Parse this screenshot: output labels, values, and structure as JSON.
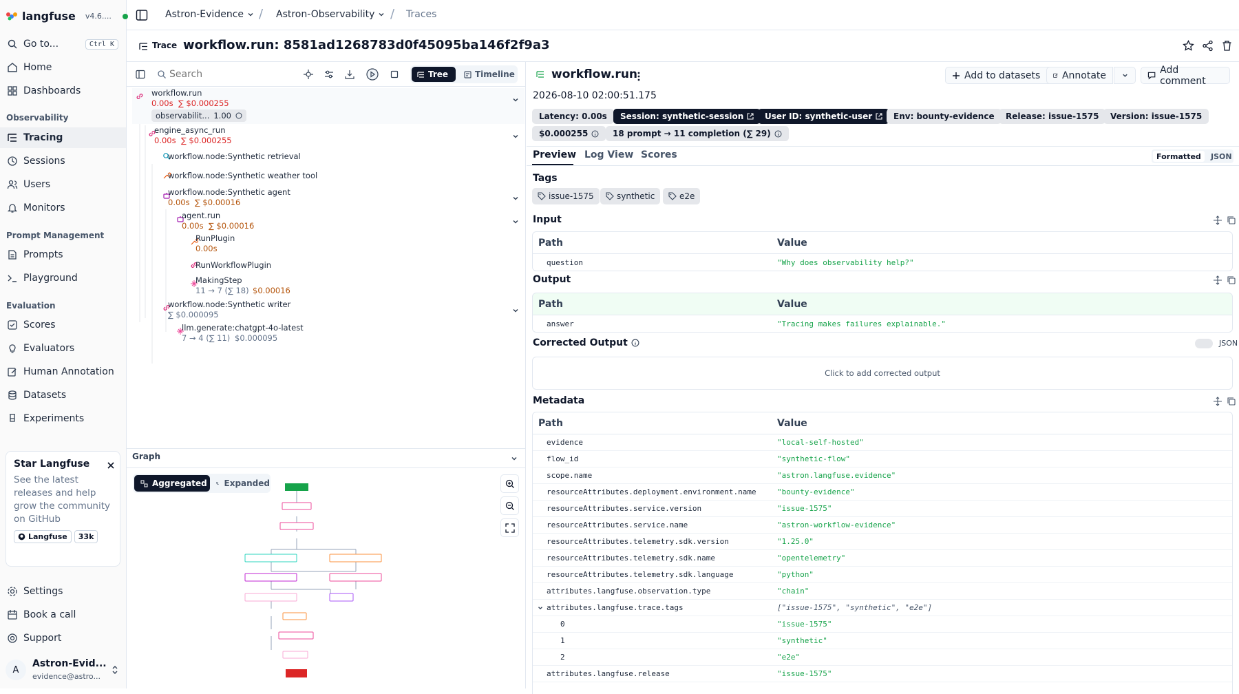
{
  "app": {
    "name": "langfuse",
    "version": "v4.6...."
  },
  "sidebar": {
    "goto": {
      "label": "Go to...",
      "shortcut": "Ctrl K"
    },
    "home": "Home",
    "dashboards": "Dashboards",
    "sections": {
      "observability": "Observability",
      "prompt_management": "Prompt Management",
      "evaluation": "Evaluation"
    },
    "observability_items": [
      "Tracing",
      "Sessions",
      "Users",
      "Monitors"
    ],
    "prompt_items": [
      "Prompts",
      "Playground"
    ],
    "evaluation_items": [
      "Scores",
      "Evaluators",
      "Human Annotation",
      "Datasets",
      "Experiments"
    ],
    "star_card": {
      "title": "Star Langfuse",
      "desc": "See the latest releases and help grow the community on GitHub",
      "gh_label": "Langfuse",
      "gh_count": "33k"
    },
    "bottom_items": [
      "Settings",
      "Book a call",
      "Support"
    ],
    "user": {
      "initial": "A",
      "name": "Astron-Evid...",
      "email": "evidence@astro..."
    }
  },
  "breadcrumb": {
    "org": "Astron-Evidence",
    "project": "Astron-Observability",
    "page": "Traces"
  },
  "trace_header": {
    "badge": "Trace",
    "title": "workflow.run: 8581ad1268783d0f45095ba146f2f9a3"
  },
  "tree_panel": {
    "search_placeholder": "Search",
    "view_tree": "Tree",
    "view_timeline": "Timeline",
    "rows": {
      "r1": {
        "name": "workflow.run",
        "latency": "0.00s",
        "cost": "∑ $0.000255",
        "score_label": "observabilit...",
        "score_value": "1.00"
      },
      "r2": {
        "name": "engine_async_run",
        "latency": "0.00s",
        "cost": "∑ $0.000255"
      },
      "r3": {
        "name": "workflow.node:Synthetic retrieval"
      },
      "r4": {
        "name": "workflow.node:Synthetic weather tool"
      },
      "r5": {
        "name": "workflow.node:Synthetic agent",
        "latency": "0.00s",
        "cost": "∑ $0.00016"
      },
      "r6": {
        "name": "agent.run",
        "latency": "0.00s",
        "cost": "∑ $0.00016"
      },
      "r7": {
        "name": "RunPlugin",
        "latency": "0.00s"
      },
      "r8": {
        "name": "RunWorkflowPlugin"
      },
      "r9": {
        "name": "MakingStep",
        "tokens": "11 → 7 (∑ 18)",
        "cost": "$0.00016"
      },
      "r10": {
        "name": "workflow.node:Synthetic writer",
        "cost": "∑ $0.000095"
      },
      "r11": {
        "name": "llm.generate:chatgpt-4o-latest",
        "tokens": "7 → 4 (∑ 11)",
        "cost": "$0.000095"
      }
    }
  },
  "graph": {
    "title": "Graph",
    "aggregated": "Aggregated",
    "expanded": "Expanded"
  },
  "detail": {
    "title": "workflow.run",
    "timestamp": "2026-08-10 02:00:51.175",
    "actions": {
      "add_to_datasets": "Add to datasets",
      "annotate": "Annotate",
      "add_comment": "Add comment"
    },
    "pills": {
      "latency": "Latency: 0.00s",
      "session": "Session: synthetic-session",
      "user": "User ID: synthetic-user",
      "env": "Env: bounty-evidence",
      "release": "Release: issue-1575",
      "version": "Version: issue-1575",
      "cost": "$0.000255",
      "tokens": "18 prompt → 11 completion (∑ 29)"
    },
    "tabs": [
      "Preview",
      "Log View",
      "Scores"
    ],
    "format": {
      "formatted": "Formatted",
      "json": "JSON"
    },
    "tags_title": "Tags",
    "tags": [
      "issue-1575",
      "synthetic",
      "e2e"
    ],
    "input": {
      "title": "Input",
      "path_header": "Path",
      "value_header": "Value",
      "rows": [
        {
          "k": "question",
          "v": "\"Why does observability help?\""
        }
      ]
    },
    "output": {
      "title": "Output",
      "path_header": "Path",
      "value_header": "Value",
      "rows": [
        {
          "k": "answer",
          "v": "\"Tracing makes failures explainable.\""
        }
      ]
    },
    "corrected": {
      "title": "Corrected Output",
      "json_label": "JSON",
      "placeholder": "Click to add corrected output"
    },
    "metadata": {
      "title": "Metadata",
      "path_header": "Path",
      "value_header": "Value",
      "rows": [
        {
          "k": "evidence",
          "v": "\"local-self-hosted\""
        },
        {
          "k": "flow_id",
          "v": "\"synthetic-flow\""
        },
        {
          "k": "scope.name",
          "v": "\"astron.langfuse.evidence\""
        },
        {
          "k": "resourceAttributes.deployment.environment.name",
          "v": "\"bounty-evidence\""
        },
        {
          "k": "resourceAttributes.service.version",
          "v": "\"issue-1575\""
        },
        {
          "k": "resourceAttributes.service.name",
          "v": "\"astron-workflow-evidence\""
        },
        {
          "k": "resourceAttributes.telemetry.sdk.version",
          "v": "\"1.25.0\""
        },
        {
          "k": "resourceAttributes.telemetry.sdk.name",
          "v": "\"opentelemetry\""
        },
        {
          "k": "resourceAttributes.telemetry.sdk.language",
          "v": "\"python\""
        },
        {
          "k": "attributes.langfuse.observation.type",
          "v": "\"chain\""
        },
        {
          "k": "attributes.langfuse.trace.tags",
          "v": "[\"issue-1575\", \"synthetic\", \"e2e\"]"
        },
        {
          "k": "0",
          "v": "\"issue-1575\""
        },
        {
          "k": "1",
          "v": "\"synthetic\""
        },
        {
          "k": "2",
          "v": "\"e2e\""
        },
        {
          "k": "attributes.langfuse.release",
          "v": "\"issue-1575\""
        }
      ]
    }
  },
  "colors": {
    "accent_green": "#16a34a",
    "cost_red": "#dc2626",
    "cost_amber": "#b45309",
    "dark": "#0f172a"
  }
}
